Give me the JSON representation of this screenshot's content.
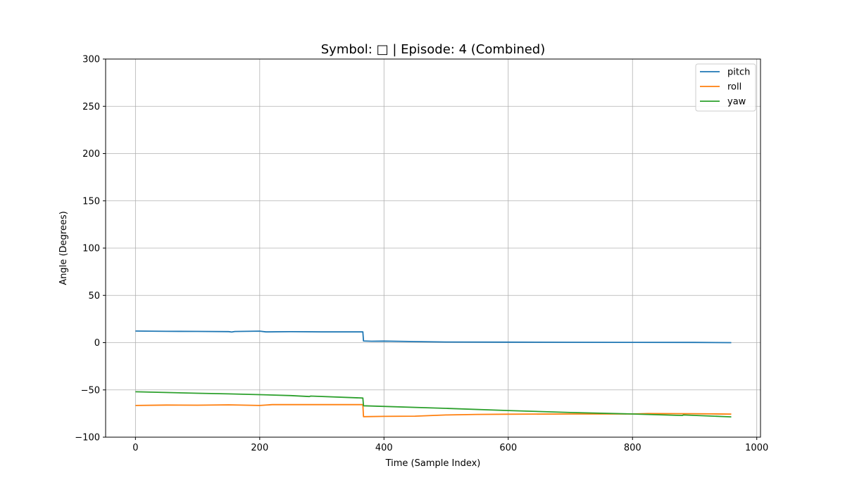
{
  "chart_data": {
    "type": "line",
    "title": "Symbol: □ | Episode: 4 (Combined)",
    "xlabel": "Time (Sample Index)",
    "ylabel": "Angle (Degrees)",
    "xlim": [
      -48,
      1006
    ],
    "ylim": [
      -100,
      300
    ],
    "xticks": [
      0,
      200,
      400,
      600,
      800,
      1000
    ],
    "yticks": [
      -100,
      -50,
      0,
      50,
      100,
      150,
      200,
      250,
      300
    ],
    "grid": true,
    "legend_position": "top-right",
    "series": [
      {
        "name": "pitch",
        "color": "#1f77b4",
        "points": [
          [
            0,
            12.3
          ],
          [
            50,
            12.0
          ],
          [
            100,
            11.9
          ],
          [
            150,
            11.7
          ],
          [
            155,
            11.2
          ],
          [
            160,
            11.8
          ],
          [
            200,
            12.2
          ],
          [
            210,
            11.4
          ],
          [
            250,
            11.6
          ],
          [
            300,
            11.4
          ],
          [
            366,
            11.4
          ],
          [
            367,
            1.8
          ],
          [
            380,
            1.5
          ],
          [
            400,
            1.6
          ],
          [
            450,
            1.1
          ],
          [
            500,
            0.7
          ],
          [
            600,
            0.5
          ],
          [
            700,
            0.4
          ],
          [
            800,
            0.3
          ],
          [
            900,
            0.2
          ],
          [
            959,
            0.0
          ]
        ]
      },
      {
        "name": "roll",
        "color": "#ff7f0e",
        "points": [
          [
            0,
            -66.5
          ],
          [
            50,
            -66.0
          ],
          [
            100,
            -66.2
          ],
          [
            150,
            -65.8
          ],
          [
            200,
            -66.5
          ],
          [
            220,
            -65.6
          ],
          [
            300,
            -65.6
          ],
          [
            366,
            -65.6
          ],
          [
            367,
            -78.3
          ],
          [
            400,
            -78.0
          ],
          [
            450,
            -77.8
          ],
          [
            500,
            -76.5
          ],
          [
            550,
            -75.9
          ],
          [
            600,
            -75.7
          ],
          [
            700,
            -75.5
          ],
          [
            800,
            -75.5
          ],
          [
            825,
            -75.0
          ],
          [
            900,
            -75.2
          ],
          [
            959,
            -75.6
          ]
        ]
      },
      {
        "name": "yaw",
        "color": "#2ca02c",
        "points": [
          [
            0,
            -52.0
          ],
          [
            100,
            -53.5
          ],
          [
            150,
            -54.2
          ],
          [
            200,
            -55.0
          ],
          [
            250,
            -56.0
          ],
          [
            280,
            -57.0
          ],
          [
            282,
            -56.5
          ],
          [
            366,
            -58.6
          ],
          [
            367,
            -66.8
          ],
          [
            500,
            -69.5
          ],
          [
            600,
            -71.8
          ],
          [
            700,
            -73.9
          ],
          [
            800,
            -75.5
          ],
          [
            880,
            -77.0
          ],
          [
            882,
            -76.5
          ],
          [
            959,
            -78.5
          ]
        ]
      }
    ]
  }
}
